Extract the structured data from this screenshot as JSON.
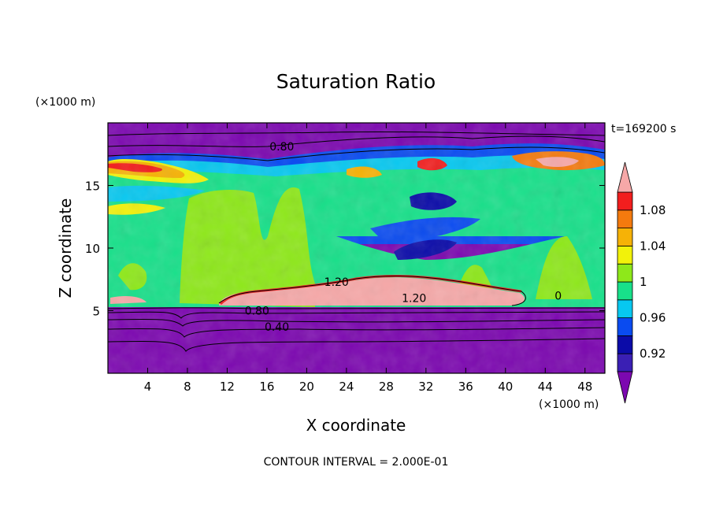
{
  "chart_data": {
    "type": "heatmap",
    "title": "Saturation Ratio",
    "xlabel": "X coordinate",
    "ylabel": "Z coordinate",
    "x_unit": "(×1000 m)",
    "y_unit": "(×1000 m)",
    "time_label": "t=169200 s",
    "footer": "CONTOUR INTERVAL = 2.000E-01",
    "xlim": [
      0,
      50
    ],
    "ylim": [
      0,
      20
    ],
    "x_ticks": [
      4,
      8,
      12,
      16,
      20,
      24,
      28,
      32,
      36,
      40,
      44,
      48
    ],
    "y_ticks": [
      5,
      10,
      15
    ],
    "colorbar": {
      "levels": [
        0.9,
        0.92,
        0.94,
        0.96,
        0.98,
        1.0,
        1.02,
        1.04,
        1.06,
        1.08,
        1.1
      ],
      "tick_labels": [
        "0.92",
        "0.96",
        "1",
        "1.04",
        "1.08"
      ],
      "colors": [
        "#3a1fb4",
        "#0b0ba8",
        "#0a4bf0",
        "#07c8f0",
        "#18e08a",
        "#8ee81a",
        "#f2f20a",
        "#f6b206",
        "#f47a0e",
        "#f21e1e"
      ],
      "under_color": "#7c08b0",
      "over_color": "#f6a8a8"
    },
    "contour_labels": [
      {
        "text": "0.80",
        "x": 17.5,
        "z": 18.1
      },
      {
        "text": "1.20",
        "x": 23.0,
        "z": 7.3
      },
      {
        "text": "1.20",
        "x": 30.8,
        "z": 6.0
      },
      {
        "text": "0.80",
        "x": 15.0,
        "z": 5.0
      },
      {
        "text": "0.40",
        "x": 17.0,
        "z": 3.7
      },
      {
        "text": "0",
        "x": 45.3,
        "z": 6.2
      }
    ]
  }
}
